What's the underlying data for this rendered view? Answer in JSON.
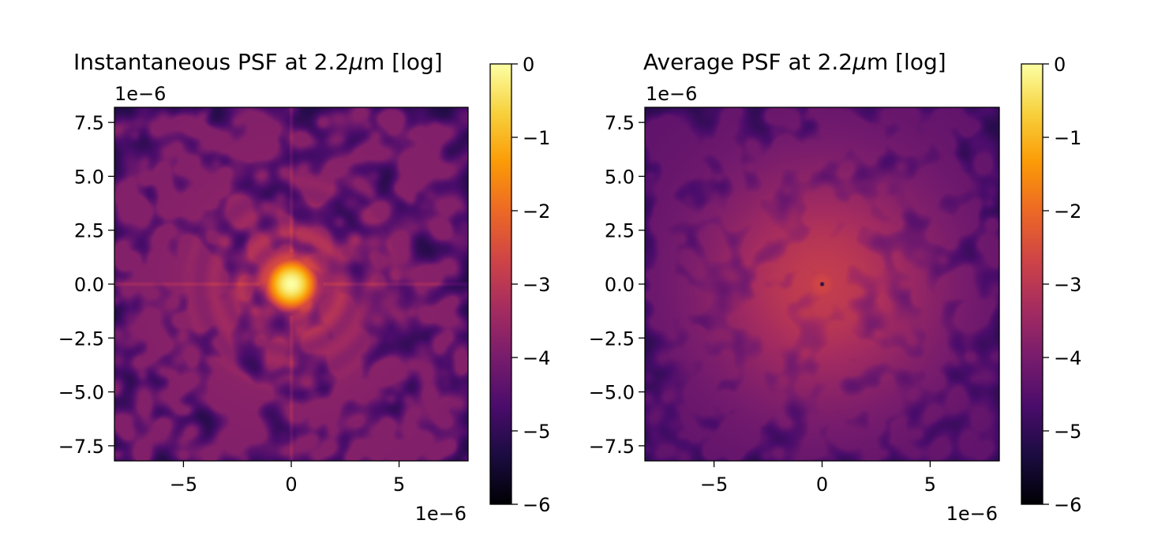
{
  "colormap": {
    "name": "inferno",
    "stops": [
      "#000004",
      "#1b0c41",
      "#4a0c6b",
      "#781c6d",
      "#a52c60",
      "#cf4446",
      "#ed6925",
      "#fb9b06",
      "#f7d13d",
      "#fcffa4"
    ]
  },
  "chart_data": [
    {
      "type": "heatmap",
      "title": "Instantaneous PSF at 2.2μm [log]",
      "title_prefix": "Instantaneous PSF at 2.2",
      "title_unit": "μ",
      "title_suffix": "m [log]",
      "x_range": [
        -8.2,
        8.2
      ],
      "y_range": [
        -8.2,
        8.2
      ],
      "x_ticks": [
        -5,
        0,
        5
      ],
      "x_tick_labels": [
        "−5",
        "0",
        "5"
      ],
      "y_ticks": [
        7.5,
        5.0,
        2.5,
        0.0,
        -2.5,
        -5.0,
        -7.5
      ],
      "y_tick_labels": [
        "7.5",
        "5.0",
        "2.5",
        "0.0",
        "−2.5",
        "−5.0",
        "−7.5"
      ],
      "x_offset_label": "1e−6",
      "y_offset_label": "1e−6",
      "value_range": [
        -6,
        0
      ],
      "colorbar_ticks": [
        0,
        -1,
        -2,
        -3,
        -4,
        -5,
        -6
      ],
      "colorbar_tick_labels": [
        "0",
        "−1",
        "−2",
        "−3",
        "−4",
        "−5",
        "−6"
      ],
      "peak_log_intensity": 0,
      "peak_position": [
        0,
        0
      ],
      "speckle_floor": -4.9,
      "pattern": "airy-rings"
    },
    {
      "type": "heatmap",
      "title": "Average PSF at 2.2μm [log]",
      "title_prefix": "Average PSF at 2.2",
      "title_unit": "μ",
      "title_suffix": "m [log]",
      "x_range": [
        -8.2,
        8.2
      ],
      "y_range": [
        -8.2,
        8.2
      ],
      "x_ticks": [
        -5,
        0,
        5
      ],
      "x_tick_labels": [
        "−5",
        "0",
        "5"
      ],
      "y_ticks": [
        7.5,
        5.0,
        2.5,
        0.0,
        -2.5,
        -5.0,
        -7.5
      ],
      "y_tick_labels": [
        "7.5",
        "5.0",
        "2.5",
        "0.0",
        "−2.5",
        "−5.0",
        "−7.5"
      ],
      "x_offset_label": "1e−6",
      "y_offset_label": "1e−6",
      "value_range": [
        -6,
        0
      ],
      "colorbar_ticks": [
        0,
        -1,
        -2,
        -3,
        -4,
        -5,
        -6
      ],
      "colorbar_tick_labels": [
        "0",
        "−1",
        "−2",
        "−3",
        "−4",
        "−5",
        "−6"
      ],
      "peak_log_intensity": -2.6,
      "peak_position": [
        0,
        0
      ],
      "speckle_floor": -4.8,
      "pattern": "smooth-halo"
    }
  ]
}
